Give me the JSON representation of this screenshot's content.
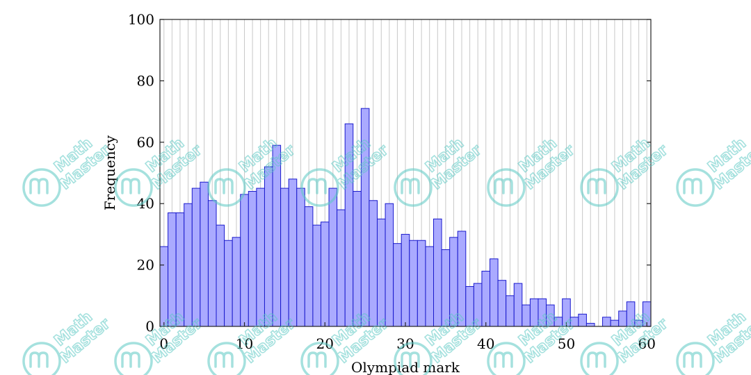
{
  "chart_data": {
    "type": "bar",
    "xlabel": "Olympiad mark",
    "ylabel": "Frequency",
    "xlim": [
      -0.5,
      60.5
    ],
    "ylim": [
      0,
      100
    ],
    "x_ticks": [
      0,
      10,
      20,
      30,
      40,
      50,
      60
    ],
    "y_ticks": [
      0,
      20,
      40,
      60,
      80,
      100
    ],
    "grid": "vertical",
    "bar_color": "#aaaaff",
    "bar_edge_color": "#1a1acc",
    "x": [
      0,
      1,
      2,
      3,
      4,
      5,
      6,
      7,
      8,
      9,
      10,
      11,
      12,
      13,
      14,
      15,
      16,
      17,
      18,
      19,
      20,
      21,
      22,
      23,
      24,
      25,
      26,
      27,
      28,
      29,
      30,
      31,
      32,
      33,
      34,
      35,
      36,
      37,
      38,
      39,
      40,
      41,
      42,
      43,
      44,
      45,
      46,
      47,
      48,
      49,
      50,
      51,
      52,
      53,
      54,
      55,
      56,
      57,
      58,
      59,
      60
    ],
    "values": [
      26,
      37,
      37,
      40,
      45,
      47,
      41,
      33,
      28,
      29,
      43,
      44,
      45,
      52,
      59,
      45,
      48,
      45,
      39,
      33,
      34,
      45,
      38,
      66,
      44,
      71,
      41,
      35,
      40,
      27,
      30,
      28,
      28,
      26,
      35,
      25,
      29,
      31,
      13,
      14,
      18,
      22,
      15,
      10,
      14,
      7,
      9,
      9,
      7,
      3,
      9,
      3,
      4,
      1,
      0,
      3,
      2,
      5,
      8,
      2,
      8
    ]
  },
  "watermark": {
    "line1": "Math",
    "line2": "Master",
    "color": "#5cc8c4"
  }
}
